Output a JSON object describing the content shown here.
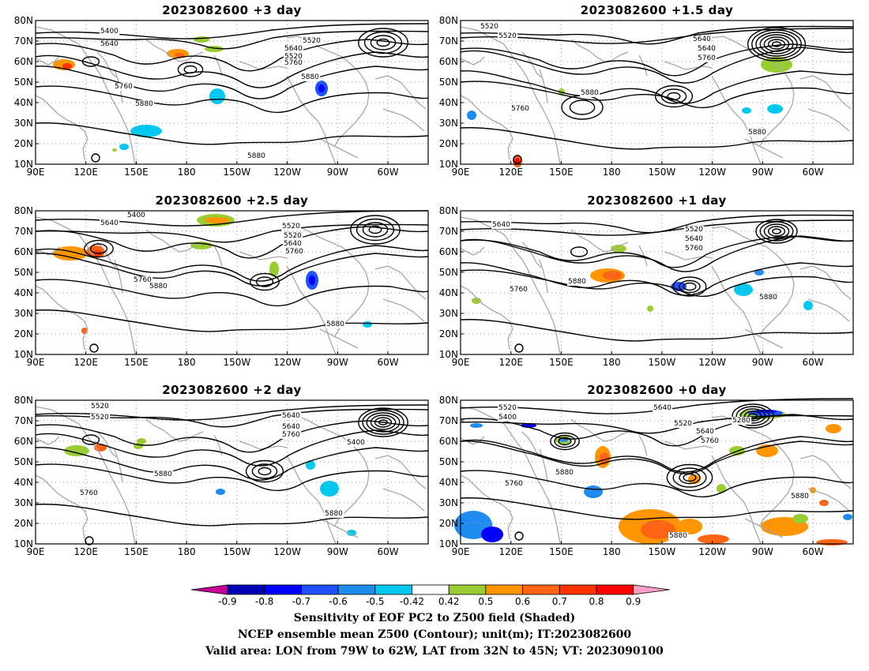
{
  "panels": [
    {
      "title": "2023082600  +3 day"
    },
    {
      "title": "2023082600  +1.5 day"
    },
    {
      "title": "2023082600  +2.5 day"
    },
    {
      "title": "2023082600  +1 day"
    },
    {
      "title": "2023082600  +2 day"
    },
    {
      "title": "2023082600  +0 day"
    }
  ],
  "axes": {
    "x_ticks": [
      "90E",
      "120E",
      "150E",
      "180",
      "150W",
      "120W",
      "90W",
      "60W"
    ],
    "y_ticks": [
      "80N",
      "70N",
      "60N",
      "50N",
      "40N",
      "30N",
      "20N",
      "10N"
    ]
  },
  "colorbar": {
    "ticks": [
      "-0.9",
      "-0.8",
      "-0.7",
      "-0.6",
      "-0.5",
      "-0.42",
      "0.42",
      "0.5",
      "0.6",
      "0.7",
      "0.8",
      "0.9"
    ],
    "colors": [
      "#0000b4",
      "#0000ff",
      "#1e50ff",
      "#1e8cf0",
      "#00c8f0",
      "#ffffff",
      "#9acd32",
      "#ff9600",
      "#ff6414",
      "#ff3200",
      "#ff0000"
    ],
    "low_color": "#c80096",
    "high_color": "#ffa0c8"
  },
  "footer": {
    "line1": "Sensitivity of EOF PC2 to Z500 field (Shaded)",
    "line2": "NCEP ensemble mean Z500 (Contour); unit(m); IT:2023082600",
    "line3": "Valid area: LON from 79W to 62W, LAT from 32N to 45N; VT: 2023090100"
  },
  "contour_labels": {
    "p0": [
      "5400",
      "5520",
      "5640",
      "5520",
      "5640",
      "5760",
      "5760",
      "5880",
      "5880",
      "5880"
    ],
    "p1": [
      "5520",
      "5640",
      "5520",
      "5640",
      "5760",
      "5880",
      "5760",
      "5880"
    ],
    "p2": [
      "5400",
      "5520",
      "5640",
      "5520",
      "5640",
      "5760",
      "5760",
      "5880",
      "5880"
    ],
    "p3": [
      "5640",
      "5520",
      "5640",
      "5760",
      "5880",
      "5760",
      "5880"
    ],
    "p4": [
      "5520",
      "5640",
      "5520",
      "5640",
      "5760",
      "5400",
      "5880",
      "5760",
      "5880"
    ],
    "p5": [
      "5520",
      "5640",
      "5400",
      "5520",
      "5640",
      "5760",
      "5280",
      "5880",
      "5760",
      "5880",
      "5880"
    ]
  }
}
